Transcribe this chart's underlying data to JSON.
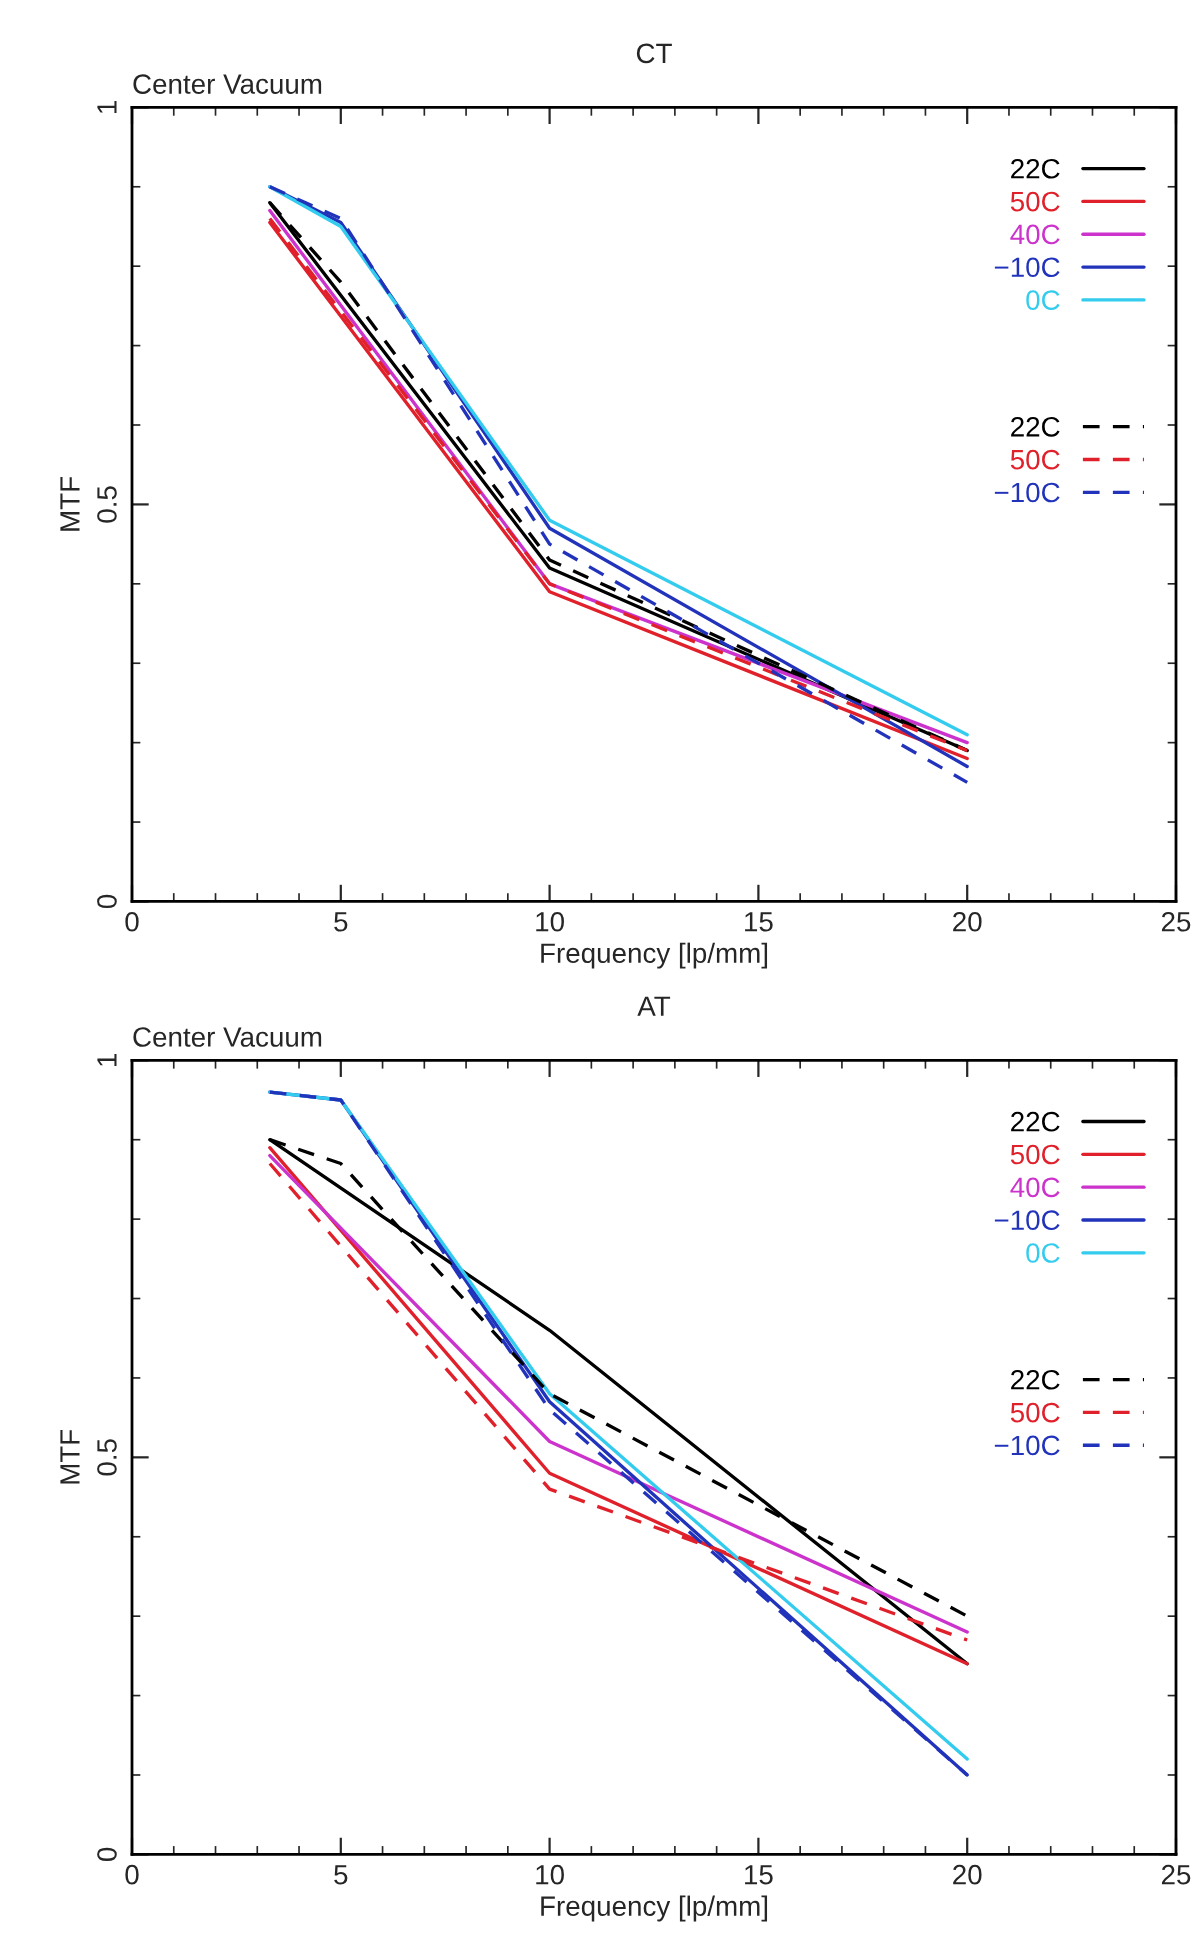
{
  "chart_data": [
    {
      "type": "line",
      "title": "CT",
      "annotations": [
        "Center Vacuum"
      ],
      "xlabel": "Frequency [lp/mm]",
      "ylabel": "MTF",
      "xlim": [
        0,
        25
      ],
      "xticks": [
        0,
        5,
        10,
        15,
        20,
        25
      ],
      "ylim": [
        0,
        1
      ],
      "yticks": [
        0,
        0.5,
        1
      ],
      "grid": false,
      "legend": "top right",
      "marker": "none",
      "series": [
        {
          "name": "22C",
          "color": "#000000",
          "line_style": "solid",
          "x": [
            3.3,
            10,
            20
          ],
          "values": [
            0.88,
            0.42,
            0.19
          ]
        },
        {
          "name": "50C",
          "color": "#e0202a",
          "line_style": "solid",
          "x": [
            3.3,
            10,
            20
          ],
          "values": [
            0.855,
            0.39,
            0.18
          ]
        },
        {
          "name": "40C",
          "color": "#cc33cc",
          "line_style": "solid",
          "x": [
            3.3,
            10,
            20
          ],
          "values": [
            0.87,
            0.4,
            0.2
          ]
        },
        {
          "name": "−10C",
          "color": "#2233bb",
          "line_style": "solid",
          "x": [
            3.3,
            5,
            10,
            20
          ],
          "values": [
            0.9,
            0.855,
            0.47,
            0.17
          ]
        },
        {
          "name": "0C",
          "color": "#33ccee",
          "line_style": "solid",
          "x": [
            3.3,
            5,
            10,
            20
          ],
          "values": [
            0.9,
            0.85,
            0.48,
            0.21
          ]
        },
        {
          "name": "22C",
          "color": "#000000",
          "line_style": "dashed",
          "x": [
            3.3,
            5,
            10,
            20
          ],
          "values": [
            0.88,
            0.78,
            0.43,
            0.19
          ]
        },
        {
          "name": "50C",
          "color": "#e0202a",
          "line_style": "dashed",
          "x": [
            3.3,
            10,
            20
          ],
          "values": [
            0.86,
            0.4,
            0.19
          ]
        },
        {
          "name": "−10C",
          "color": "#2233bb",
          "line_style": "dashed",
          "x": [
            3.3,
            5,
            10,
            20
          ],
          "values": [
            0.9,
            0.86,
            0.45,
            0.15
          ]
        }
      ]
    },
    {
      "type": "line",
      "title": "AT",
      "annotations": [
        "Center Vacuum"
      ],
      "xlabel": "Frequency [lp/mm]",
      "ylabel": "MTF",
      "xlim": [
        0,
        25
      ],
      "xticks": [
        0,
        5,
        10,
        15,
        20,
        25
      ],
      "ylim": [
        0,
        1
      ],
      "yticks": [
        0,
        0.5,
        1
      ],
      "grid": false,
      "legend": "top right",
      "marker": "none",
      "series": [
        {
          "name": "22C",
          "color": "#000000",
          "line_style": "solid",
          "x": [
            3.3,
            10,
            20
          ],
          "values": [
            0.9,
            0.66,
            0.24
          ]
        },
        {
          "name": "50C",
          "color": "#e0202a",
          "line_style": "solid",
          "x": [
            3.3,
            10,
            20
          ],
          "values": [
            0.89,
            0.48,
            0.24
          ]
        },
        {
          "name": "40C",
          "color": "#cc33cc",
          "line_style": "solid",
          "x": [
            3.3,
            10,
            20
          ],
          "values": [
            0.88,
            0.52,
            0.28
          ]
        },
        {
          "name": "−10C",
          "color": "#2233bb",
          "line_style": "solid",
          "x": [
            3.3,
            5,
            10,
            20
          ],
          "values": [
            0.96,
            0.95,
            0.57,
            0.1
          ]
        },
        {
          "name": "0C",
          "color": "#33ccee",
          "line_style": "solid",
          "x": [
            3.3,
            5,
            10,
            20
          ],
          "values": [
            0.96,
            0.95,
            0.58,
            0.12
          ]
        },
        {
          "name": "22C",
          "color": "#000000",
          "line_style": "dashed",
          "x": [
            3.3,
            5,
            10,
            20
          ],
          "values": [
            0.9,
            0.87,
            0.58,
            0.3
          ]
        },
        {
          "name": "50C",
          "color": "#e0202a",
          "line_style": "dashed",
          "x": [
            3.3,
            10,
            20
          ],
          "values": [
            0.87,
            0.46,
            0.27
          ]
        },
        {
          "name": "−10C",
          "color": "#2233bb",
          "line_style": "dashed",
          "x": [
            3.3,
            5,
            10,
            20
          ],
          "values": [
            0.96,
            0.95,
            0.56,
            0.1
          ]
        }
      ]
    }
  ]
}
